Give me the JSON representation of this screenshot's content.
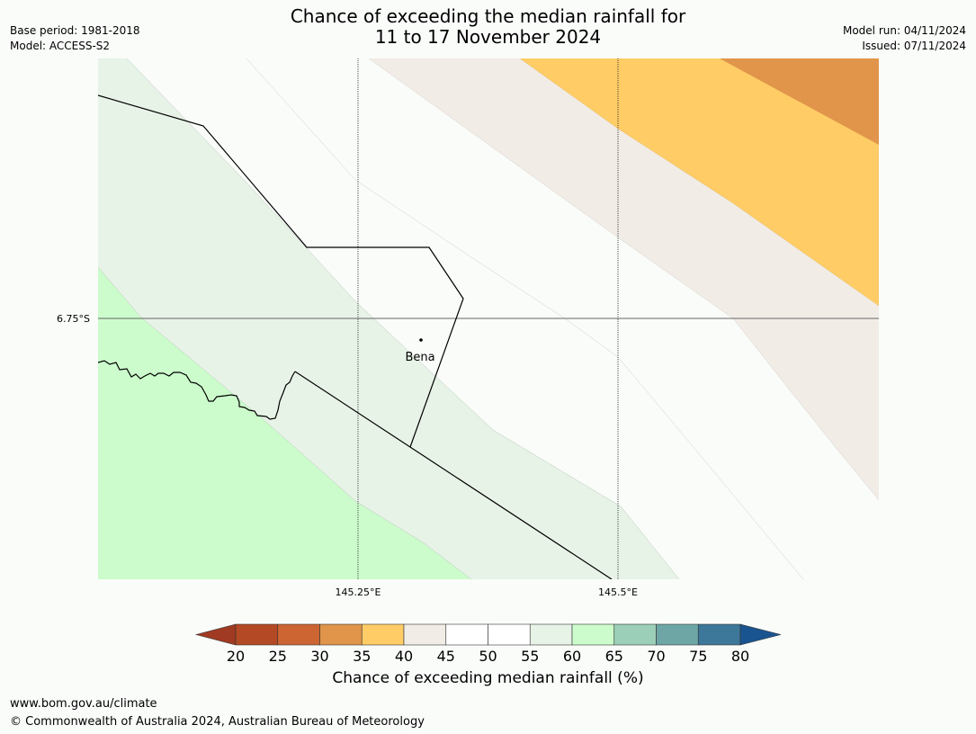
{
  "title": {
    "line1": "Chance of exceeding the median rainfall for",
    "line2": "11 to 17 November 2024"
  },
  "meta_left": {
    "base_period": "Base period: 1981-2018",
    "model": "Model: ACCESS-S2"
  },
  "meta_right": {
    "model_run": "Model run: 04/11/2024",
    "issued": "Issued: 07/11/2024"
  },
  "map": {
    "lat_labels": [
      "6.75°S"
    ],
    "lon_labels": [
      "145.25°E",
      "145.5°E"
    ],
    "place": "Bena",
    "zone_colors": {
      "c30": "#e0954a",
      "c35": "#ffcc66",
      "c40": "#f1ece6",
      "c50": "#fafcfa",
      "c55": "#e8f3e8",
      "c60": "#ccfccc"
    }
  },
  "colorbar": {
    "label": "Chance of exceeding median rainfall (%)",
    "ticks": [
      "20",
      "25",
      "30",
      "35",
      "40",
      "45",
      "50",
      "55",
      "60",
      "65",
      "70",
      "75",
      "80"
    ],
    "colors": [
      "#a13a22",
      "#b44a25",
      "#cc6532",
      "#e0954a",
      "#ffcc66",
      "#f1ece6",
      "#ffffff",
      "#ffffff",
      "#e8f3e8",
      "#ccfccc",
      "#9ccfb7",
      "#6ea6a6",
      "#3d7799",
      "#1a5490"
    ]
  },
  "footer": {
    "url": "www.bom.gov.au/climate",
    "copyright": "© Commonwealth of Australia 2024, Australian Bureau of Meteorology"
  }
}
